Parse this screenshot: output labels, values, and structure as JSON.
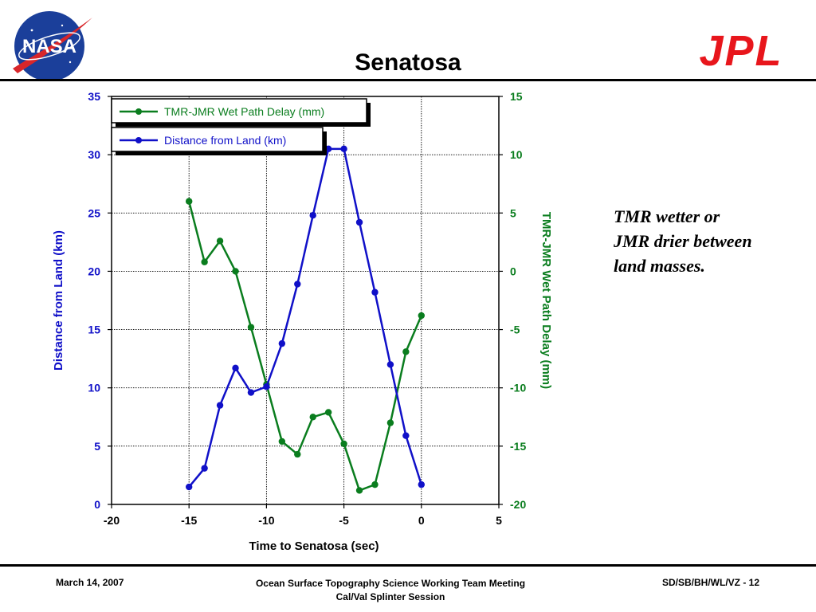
{
  "slide": {
    "title": "Senatosa",
    "note_lines": [
      "TMR wetter or",
      "JMR drier between",
      "land masses."
    ],
    "footer": {
      "date": "March 14, 2007",
      "meeting_line1": "Ocean Surface Topography Science Working Team Meeting",
      "meeting_line2": "Cal/Val Splinter Session",
      "page_ref": "SD/SB/BH/WL/VZ - 12"
    },
    "logos": {
      "nasa": {
        "icon": "nasa-meatball-logo",
        "text": "NASA"
      },
      "jpl": {
        "icon": "jpl-logo",
        "text": "JPL"
      }
    }
  },
  "chart_data": {
    "type": "line",
    "title": "",
    "xlabel": "Time to Senatosa (sec)",
    "ylabel": "Distance from Land (km)",
    "y2label": "TMR-JMR Wet Path Delay (mm)",
    "xlim": [
      -20,
      5
    ],
    "ylim": [
      0,
      35
    ],
    "y2lim": [
      -20,
      15
    ],
    "xticks": [
      "-20",
      "-15",
      "-10",
      "-5",
      "0",
      "5"
    ],
    "yticks": [
      "0",
      "5",
      "10",
      "15",
      "20",
      "25",
      "30",
      "35"
    ],
    "y2ticks": [
      "-20",
      "-15",
      "-10",
      "-5",
      "0",
      "5",
      "10",
      "15"
    ],
    "grid": true,
    "legend_position": "top-left",
    "series": [
      {
        "name": "TMR-JMR Wet Path Delay (mm)",
        "axis": "right",
        "color": "#0a7d1e",
        "x": [
          -15,
          -14,
          -13,
          -12,
          -11,
          -10,
          -9,
          -8,
          -7,
          -6,
          -5,
          -4,
          -3,
          -2,
          -1,
          0
        ],
        "y": [
          6.0,
          0.8,
          2.6,
          0.0,
          -4.8,
          -9.7,
          -14.6,
          -15.7,
          -12.5,
          -12.1,
          -14.8,
          -18.8,
          -18.3,
          -13.0,
          -6.9,
          -3.8
        ]
      },
      {
        "name": "Distance from Land (km)",
        "axis": "left",
        "color": "#1010c8",
        "x": [
          -15,
          -14,
          -13,
          -12,
          -11,
          -10,
          -9,
          -8,
          -7,
          -6,
          -5,
          -4,
          -3,
          -2,
          -1,
          0
        ],
        "y": [
          1.5,
          3.1,
          8.5,
          11.7,
          9.6,
          10.1,
          13.8,
          18.9,
          24.8,
          30.5,
          30.5,
          24.2,
          18.2,
          12.0,
          5.9,
          1.7
        ]
      }
    ]
  }
}
